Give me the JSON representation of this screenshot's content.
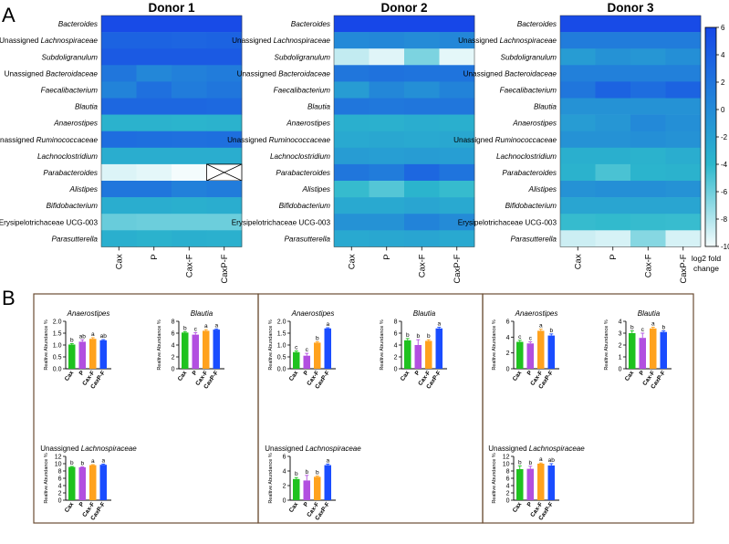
{
  "panel_labels": [
    "A",
    "B"
  ],
  "colorbar": {
    "ticks": [
      "6",
      "4",
      "2",
      "0",
      "-2",
      "-4",
      "-6",
      "-8",
      "-10"
    ],
    "tick_values": [
      6,
      4,
      2,
      0,
      -2,
      -4,
      -6,
      -8,
      -10
    ],
    "label_lines": [
      "log2 fold",
      "change"
    ],
    "color_max": "#1747e8",
    "color_mid": "#2cb8cc",
    "color_min": "#f4fcfd"
  },
  "bar_colors": {
    "Cax": "#1fc21f",
    "P": "#b24fe0",
    "Cax-F": "#ffa21e",
    "CaxP-F": "#1a4dff"
  },
  "chart_data": [
    {
      "type": "heatmap",
      "title": "Donor 1",
      "rows": [
        {
          "name": [
            "Bacteroides"
          ],
          "values": [
            5.8,
            5.8,
            5.8,
            5.8
          ]
        },
        {
          "name": [
            "Unassigned ",
            "Lachnospiraceae"
          ],
          "values": [
            4.5,
            4.5,
            4.4,
            4.5
          ]
        },
        {
          "name": [
            "Subdoligranulum"
          ],
          "values": [
            5.0,
            5.0,
            5.0,
            5.0
          ]
        },
        {
          "name": [
            "Unassigned ",
            "Bacteroidaceae"
          ],
          "values": [
            3.5,
            2.6,
            3.0,
            3.2
          ]
        },
        {
          "name": [
            "Faecalibacterium"
          ],
          "values": [
            2.8,
            3.8,
            3.2,
            3.5
          ]
        },
        {
          "name": [
            "Blautia"
          ],
          "values": [
            4.3,
            4.3,
            4.3,
            4.2
          ]
        },
        {
          "name": [
            "Anaerostipes"
          ],
          "values": [
            0.3,
            0.3,
            0.2,
            0.3
          ]
        },
        {
          "name": [
            "Unassigned ",
            "Ruminococcaceae"
          ],
          "values": [
            4.0,
            3.9,
            3.8,
            3.9
          ]
        },
        {
          "name": [
            "Lachnoclostridium"
          ],
          "values": [
            0.6,
            0.6,
            0.6,
            0.6
          ]
        },
        {
          "name": [
            "Parabacteroides"
          ],
          "values": [
            -8.8,
            -9.2,
            -10,
            null
          ]
        },
        {
          "name": [
            "Alistipes"
          ],
          "values": [
            3.5,
            3.5,
            3.0,
            3.2
          ]
        },
        {
          "name": [
            "Bifidobacterium"
          ],
          "values": [
            0.6,
            0.6,
            0.5,
            0.6
          ]
        },
        {
          "name": [
            "Erysipelotrichaceae UCG-003"
          ],
          "values": [
            -3.0,
            -3.2,
            -3.2,
            -3.2
          ]
        },
        {
          "name": [
            "Parasutterella"
          ],
          "values": [
            0.5,
            0.3,
            0.5,
            0.4
          ]
        }
      ],
      "columns": [
        "Cax",
        "P",
        "Cax-F",
        "CaxP-F"
      ]
    },
    {
      "type": "heatmap",
      "title": "Donor 2",
      "rows": [
        {
          "name": [
            "Bacteroides"
          ],
          "values": [
            6.0,
            6.0,
            6.0,
            6.0
          ]
        },
        {
          "name": [
            "Unassigned ",
            "Lachnospiraceae"
          ],
          "values": [
            2.5,
            2.6,
            2.4,
            2.6
          ]
        },
        {
          "name": [
            "Subdoligranulum"
          ],
          "values": [
            -7.5,
            -9.0,
            -4.0,
            -9.2
          ]
        },
        {
          "name": [
            "Unassigned ",
            "Bacteroidaceae"
          ],
          "values": [
            3.5,
            3.7,
            3.6,
            3.6
          ]
        },
        {
          "name": [
            "Faecalibacterium"
          ],
          "values": [
            1.5,
            2.6,
            2.2,
            2.8
          ]
        },
        {
          "name": [
            "Blautia"
          ],
          "values": [
            3.5,
            3.4,
            3.5,
            3.5
          ]
        },
        {
          "name": [
            "Anaerostipes"
          ],
          "values": [
            0.5,
            0.4,
            0.6,
            0.5
          ]
        },
        {
          "name": [
            "Unassigned ",
            "Ruminococcaceae"
          ],
          "values": [
            0.8,
            0.9,
            0.8,
            0.9
          ]
        },
        {
          "name": [
            "Lachnoclostridium"
          ],
          "values": [
            1.5,
            1.4,
            1.5,
            1.4
          ]
        },
        {
          "name": [
            "Parabacteroides"
          ],
          "values": [
            3.5,
            3.2,
            4.3,
            3.6
          ]
        },
        {
          "name": [
            "Alistipes"
          ],
          "values": [
            -0.5,
            -2.0,
            0.2,
            -0.5
          ]
        },
        {
          "name": [
            "Bifidobacterium"
          ],
          "values": [
            0.8,
            0.8,
            1.0,
            0.8
          ]
        },
        {
          "name": [
            "Erysipelotrichaceae UCG-003"
          ],
          "values": [
            2.0,
            2.0,
            2.8,
            2.4
          ]
        },
        {
          "name": [
            "Parasutterella"
          ],
          "values": [
            0.8,
            0.9,
            1.0,
            0.8
          ]
        }
      ],
      "columns": [
        "Cax",
        "P",
        "Cax-F",
        "CaxP-F"
      ]
    },
    {
      "type": "heatmap",
      "title": "Donor 3",
      "rows": [
        {
          "name": [
            "Bacteroides"
          ],
          "values": [
            5.8,
            5.8,
            5.8,
            5.8
          ]
        },
        {
          "name": [
            "Unassigned ",
            "Lachnospiraceae"
          ],
          "values": [
            3.2,
            3.2,
            3.2,
            3.2
          ]
        },
        {
          "name": [
            "Subdoligranulum"
          ],
          "values": [
            1.5,
            2.0,
            1.8,
            2.2
          ]
        },
        {
          "name": [
            "Unassigned ",
            "Bacteroidaceae"
          ],
          "values": [
            3.0,
            3.0,
            3.0,
            3.0
          ]
        },
        {
          "name": [
            "Faecalibacterium"
          ],
          "values": [
            3.5,
            4.5,
            4.0,
            4.5
          ]
        },
        {
          "name": [
            "Blautia"
          ],
          "values": [
            2.0,
            2.0,
            2.0,
            2.0
          ]
        },
        {
          "name": [
            "Anaerostipes"
          ],
          "values": [
            1.5,
            1.8,
            2.5,
            2.2
          ]
        },
        {
          "name": [
            "Unassigned ",
            "Ruminococcaceae"
          ],
          "values": [
            2.0,
            2.0,
            2.2,
            2.0
          ]
        },
        {
          "name": [
            "Lachnoclostridium"
          ],
          "values": [
            0.5,
            0.5,
            0.3,
            0.6
          ]
        },
        {
          "name": [
            "Parabacteroides"
          ],
          "values": [
            0.3,
            -1.5,
            0.2,
            0.3
          ]
        },
        {
          "name": [
            "Alistipes"
          ],
          "values": [
            2.0,
            2.2,
            2.2,
            2.0
          ]
        },
        {
          "name": [
            "Bifidobacterium"
          ],
          "values": [
            1.0,
            1.0,
            1.0,
            1.0
          ]
        },
        {
          "name": [
            "Erysipelotrichaceae UCG-003"
          ],
          "values": [
            -0.5,
            -0.3,
            -0.5,
            -0.6
          ]
        },
        {
          "name": [
            "Parasutterella"
          ],
          "values": [
            -8.0,
            -8.5,
            -4.5,
            -8.5
          ]
        }
      ],
      "columns": [
        "Cax",
        "P",
        "Cax-F",
        "CaxP-F"
      ]
    },
    {
      "type": "bar",
      "panel": "Donor 1",
      "title": [
        "Anaerostipes"
      ],
      "italic": true,
      "ylabel": "Realtive Abundance %",
      "ylim": [
        0,
        2.0
      ],
      "yticks": [
        "0.0",
        "0.5",
        "1.0",
        "1.5",
        "2.0"
      ],
      "categories": [
        "Cax",
        "P",
        "Cax-F",
        "CaxP-F"
      ],
      "values": [
        1.02,
        1.14,
        1.26,
        1.2
      ],
      "errors": [
        0.04,
        0.08,
        0.05,
        0.03
      ],
      "letters": [
        "b",
        "ab",
        "a",
        "ab"
      ]
    },
    {
      "type": "bar",
      "panel": "Donor 1",
      "title": [
        "Blautia"
      ],
      "italic": true,
      "ylabel": "Realtive Abundance %",
      "ylim": [
        0,
        8
      ],
      "yticks": [
        "0",
        "2",
        "4",
        "6",
        "8"
      ],
      "categories": [
        "Cax",
        "P",
        "Cax-F",
        "CaxP-F"
      ],
      "values": [
        6.1,
        5.75,
        6.4,
        6.6
      ],
      "errors": [
        0.15,
        0.35,
        0.2,
        0.12
      ],
      "letters": [
        "b",
        "c",
        "a",
        "a"
      ]
    },
    {
      "type": "bar",
      "panel": "Donor 1",
      "title": [
        "Unassigned ",
        "Lachnospiraceae"
      ],
      "italic": false,
      "ylabel": "Realtive Abundance %",
      "ylim": [
        0,
        12
      ],
      "yticks": [
        "0",
        "2",
        "4",
        "6",
        "8",
        "10",
        "12"
      ],
      "categories": [
        "Cax",
        "P",
        "Cax-F",
        "CaxP-F"
      ],
      "values": [
        9.1,
        9.0,
        9.6,
        9.7
      ],
      "errors": [
        0.15,
        0.12,
        0.15,
        0.2
      ],
      "letters": [
        "b",
        "b",
        "a",
        "a"
      ]
    },
    {
      "type": "bar",
      "panel": "Donor 2",
      "title": [
        "Anaerostipes"
      ],
      "italic": true,
      "ylabel": "Realtive Abundance %",
      "ylim": [
        0,
        2.0
      ],
      "yticks": [
        "0.0",
        "0.5",
        "1.0",
        "1.5",
        "2.0"
      ],
      "categories": [
        "Cax",
        "P",
        "Cax-F",
        "CaxP-F"
      ],
      "values": [
        0.7,
        0.55,
        1.1,
        1.7
      ],
      "errors": [
        0.05,
        0.1,
        0.04,
        0.03
      ],
      "letters": [
        "c",
        "c",
        "b",
        "a"
      ]
    },
    {
      "type": "bar",
      "panel": "Donor 2",
      "title": [
        "Blautia"
      ],
      "italic": true,
      "ylabel": "Realtive Abundance %",
      "ylim": [
        0,
        8
      ],
      "yticks": [
        "0",
        "2",
        "4",
        "6",
        "8"
      ],
      "categories": [
        "Cax",
        "P",
        "Cax-F",
        "CaxP-F"
      ],
      "values": [
        4.8,
        4.0,
        4.7,
        6.8
      ],
      "errors": [
        0.3,
        0.9,
        0.2,
        0.2
      ],
      "letters": [
        "b",
        "b",
        "b",
        "a"
      ]
    },
    {
      "type": "bar",
      "panel": "Donor 2",
      "title": [
        "Unassigned ",
        "Lachnospiraceae"
      ],
      "italic": false,
      "ylabel": "Realtive Abundance %",
      "ylim": [
        0,
        6
      ],
      "yticks": [
        "0",
        "2",
        "4",
        "6"
      ],
      "categories": [
        "Cax",
        "P",
        "Cax-F",
        "CaxP-F"
      ],
      "values": [
        2.9,
        2.7,
        3.2,
        4.8
      ],
      "errors": [
        0.2,
        0.7,
        0.1,
        0.15
      ],
      "letters": [
        "b",
        "b",
        "b",
        "a"
      ]
    },
    {
      "type": "bar",
      "panel": "Donor 3",
      "title": [
        "Anaerostipes"
      ],
      "italic": true,
      "ylabel": "Realtive Abundance %",
      "ylim": [
        0,
        6
      ],
      "yticks": [
        "0",
        "2",
        "4",
        "6"
      ],
      "categories": [
        "Cax",
        "P",
        "Cax-F",
        "CaxP-F"
      ],
      "values": [
        3.4,
        3.2,
        4.8,
        4.2
      ],
      "errors": [
        0.2,
        0.2,
        0.2,
        0.2
      ],
      "letters": [
        "c",
        "c",
        "a",
        "b"
      ]
    },
    {
      "type": "bar",
      "panel": "Donor 3",
      "title": [
        "Blautia"
      ],
      "italic": true,
      "ylabel": "Realtive Abundance %",
      "ylim": [
        0,
        4
      ],
      "yticks": [
        "0",
        "1",
        "2",
        "3",
        "4"
      ],
      "categories": [
        "Cax",
        "P",
        "Cax-F",
        "CaxP-F"
      ],
      "values": [
        3.0,
        2.6,
        3.4,
        3.1
      ],
      "errors": [
        0.2,
        0.4,
        0.1,
        0.1
      ],
      "letters": [
        "b",
        "c",
        "a",
        "b"
      ]
    },
    {
      "type": "bar",
      "panel": "Donor 3",
      "title": [
        "Unassigned ",
        "Lachnospiraceae"
      ],
      "italic": false,
      "ylabel": "Realtive Abundance %",
      "ylim": [
        0,
        12
      ],
      "yticks": [
        "0",
        "2",
        "4",
        "6",
        "8",
        "10",
        "12"
      ],
      "categories": [
        "Cax",
        "P",
        "Cax-F",
        "CaxP-F"
      ],
      "values": [
        8.5,
        8.6,
        10.0,
        9.5
      ],
      "errors": [
        0.9,
        0.7,
        0.2,
        0.5
      ],
      "letters": [
        "b",
        "b",
        "a",
        "ab"
      ]
    }
  ]
}
